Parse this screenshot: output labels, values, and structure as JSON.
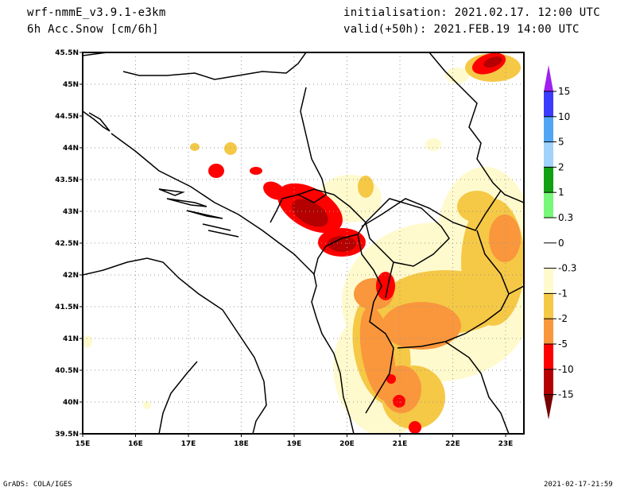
{
  "header": {
    "model": "wrf-nmmE_v3.9.1-e3km",
    "field": "6h Acc.Snow [cm/6h]",
    "init": "initialisation: 2021.02.17.  12:00 UTC",
    "valid": "valid(+50h): 2021.FEB.19 14:00 UTC"
  },
  "axes": {
    "lon_labels": [
      "15E",
      "16E",
      "17E",
      "18E",
      "19E",
      "20E",
      "21E",
      "22E",
      "23E"
    ],
    "lat_labels": [
      "45.5N",
      "45N",
      "44.5N",
      "44N",
      "43.5N",
      "43N",
      "42.5N",
      "42N",
      "41.5N",
      "41N",
      "40.5N",
      "40N",
      "39.5N"
    ]
  },
  "colorbar": {
    "labels": [
      "15",
      "10",
      "5",
      "2",
      "1",
      "0.3",
      "0",
      "-0.3",
      "-1",
      "-2",
      "-5",
      "-10",
      "-15"
    ],
    "colors": [
      "#a020f0",
      "#3c3cff",
      "#50a5f5",
      "#a0d2fa",
      "#11a011",
      "#78f878",
      "#ffffff",
      "#ffffff",
      "#fffacd",
      "#f5c846",
      "#fa963c",
      "#ff0000",
      "#b40000",
      "#780000"
    ]
  },
  "footer": {
    "left": "GrADS: COLA/IGES",
    "right": "2021-02-17-21:59"
  }
}
